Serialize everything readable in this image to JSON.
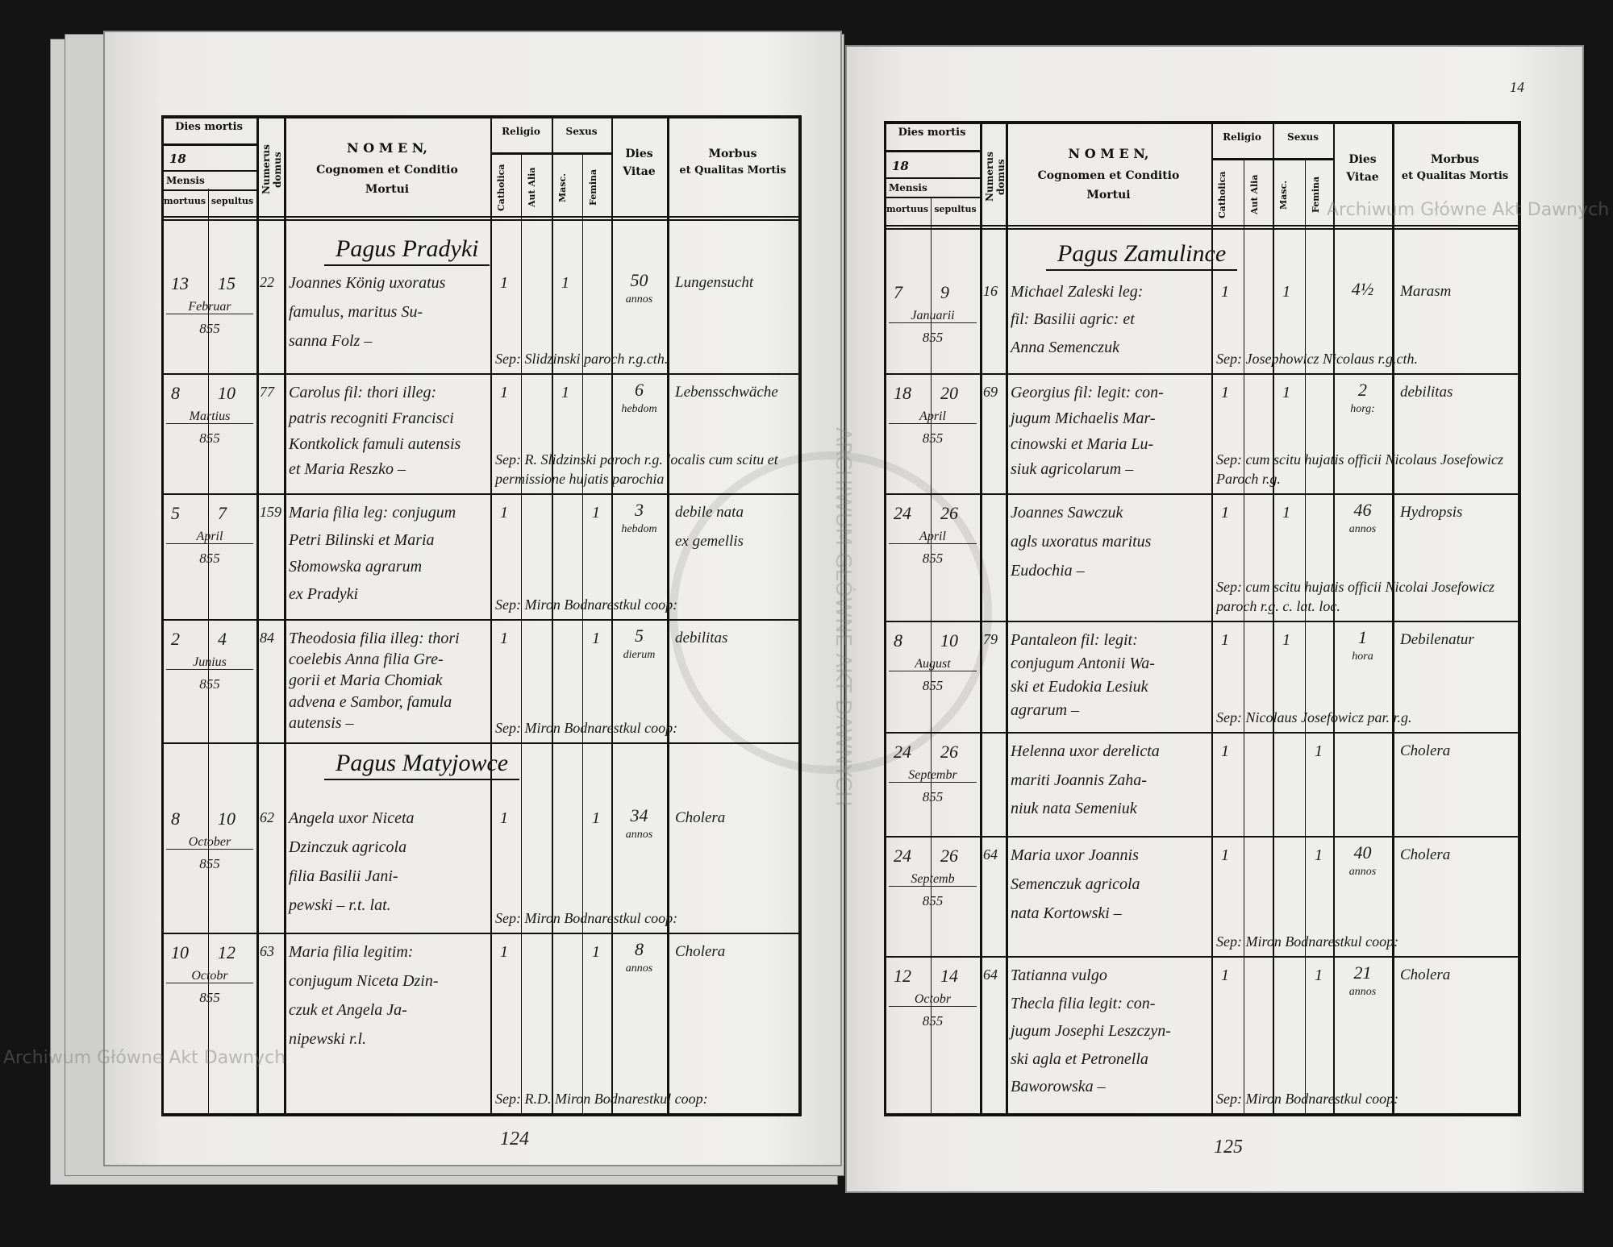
{
  "form_header": {
    "dies_mortis": "Dies mortis",
    "year_prefix": "18",
    "mensis": "Mensis",
    "mortuus": "mortuus",
    "sepultus": "sepultus",
    "numerus_domus": "Numerus domus",
    "nomen": "N O M E N,",
    "nomen_sub1": "Cognomen et Conditio",
    "nomen_sub2": "Mortui",
    "religio": "Religio",
    "catholica": "Catholica",
    "aut_alia": "Aut Alia",
    "sexus": "Sexus",
    "masc": "Masc.",
    "femina": "Femina",
    "dies_vitae_1": "Dies",
    "dies_vitae_2": "Vitae",
    "morbus_1": "Morbus",
    "morbus_2": "et Qualitas Mortis"
  },
  "watermark": "Archiwum Główne Akt Dawnych",
  "seal_text": "ARCHIWUM GŁÓWNE AKT DAWNYCH",
  "left_page": {
    "page_number": "124",
    "headings": [
      "Pagus Pradyki",
      "Pagus Matyjowce"
    ],
    "rows": [
      {
        "mortuus": "13",
        "sepultus": "15",
        "mensis": "Februar",
        "annus": "855",
        "numerus": "22",
        "nomen": [
          "Joannes König uxoratus",
          "famulus, maritus Su-",
          "sanna Folz –"
        ],
        "catholica": "1",
        "aut_alia": "",
        "masc": "1",
        "femina": "",
        "vitae": "50",
        "vitae_unit": "annos",
        "morbus": [
          "Lungensucht"
        ],
        "sepultura": "Sep: Slidzinski paroch r.g.cth."
      },
      {
        "mortuus": "8",
        "sepultus": "10",
        "mensis": "Martius",
        "annus": "855",
        "numerus": "77",
        "nomen": [
          "Carolus fil: thori illeg:",
          "patris recogniti Francisci",
          "Kontkolick famuli autensis",
          "et Maria Reszko –"
        ],
        "catholica": "1",
        "aut_alia": "",
        "masc": "1",
        "femina": "",
        "vitae": "6",
        "vitae_unit": "hebdom",
        "morbus": [
          "Lebensschwäche"
        ],
        "sepultura": "Sep: R. Slidzinski paroch r.g. localis cum scitu et permissione hujatis parochia"
      },
      {
        "mortuus": "5",
        "sepultus": "7",
        "mensis": "April",
        "annus": "855",
        "numerus": "159",
        "nomen": [
          "Maria filia leg: conjugum",
          "Petri Bilinski et Maria",
          "Słomowska agrarum",
          "ex Pradyki"
        ],
        "catholica": "1",
        "aut_alia": "",
        "masc": "",
        "femina": "1",
        "vitae": "3",
        "vitae_unit": "hebdom",
        "morbus": [
          "debile nata",
          "ex gemellis"
        ],
        "sepultura": "Sep: Miron Bodnarestkul coop:"
      },
      {
        "mortuus": "2",
        "sepultus": "4",
        "mensis": "Junius",
        "annus": "855",
        "numerus": "84",
        "nomen": [
          "Theodosia filia illeg: thori",
          "coelebis Anna filia Gre-",
          "gorii et Maria Chomiak",
          "advena e Sambor, famula",
          "autensis –"
        ],
        "catholica": "1",
        "aut_alia": "",
        "masc": "",
        "femina": "1",
        "vitae": "5",
        "vitae_unit": "dierum",
        "morbus": [
          "debilitas"
        ],
        "sepultura": "Sep: Miron Bodnarestkul coop:"
      },
      {
        "mortuus": "8",
        "sepultus": "10",
        "mensis": "October",
        "annus": "855",
        "numerus": "62",
        "nomen": [
          "Angela uxor Niceta",
          "Dzinczuk agricola",
          "filia Basilii Jani-",
          "pewski – r.t. lat."
        ],
        "catholica": "1",
        "aut_alia": "",
        "masc": "",
        "femina": "1",
        "vitae": "34",
        "vitae_unit": "annos",
        "morbus": [
          "Cholera"
        ],
        "sepultura": "Sep: Miron Bodnarestkul coop:"
      },
      {
        "mortuus": "10",
        "sepultus": "12",
        "mensis": "Octobr",
        "annus": "855",
        "numerus": "63",
        "nomen": [
          "Maria filia legitim:",
          "conjugum Niceta Dzin-",
          "czuk et Angela Ja-",
          "nipewski r.l."
        ],
        "catholica": "1",
        "aut_alia": "",
        "masc": "",
        "femina": "1",
        "vitae": "8",
        "vitae_unit": "annos",
        "morbus": [
          "Cholera"
        ],
        "sepultura": "Sep: R.D. Miron Bodnarestkul coop:"
      }
    ]
  },
  "right_page": {
    "page_number": "125",
    "folio": "14",
    "headings": [
      "Pagus Zamulince"
    ],
    "rows": [
      {
        "mortuus": "7",
        "sepultus": "9",
        "mensis": "Januarii",
        "annus": "855",
        "numerus": "16",
        "nomen": [
          "Michael Zaleski leg:",
          "fil: Basilii agric: et",
          "Anna Semenczuk"
        ],
        "catholica": "1",
        "aut_alia": "",
        "masc": "1",
        "femina": "",
        "vitae": "4½",
        "vitae_unit": "",
        "morbus": [
          "Marasm"
        ],
        "sepultura": "Sep: Josephowicz Nicolaus r.g.cth."
      },
      {
        "mortuus": "18",
        "sepultus": "20",
        "mensis": "April",
        "annus": "855",
        "numerus": "69",
        "nomen": [
          "Georgius fil: legit: con-",
          "jugum Michaelis Mar-",
          "cinowski et Maria Lu-",
          "siuk agricolarum –"
        ],
        "catholica": "1",
        "aut_alia": "",
        "masc": "1",
        "femina": "",
        "vitae": "2",
        "vitae_unit": "horg:",
        "morbus": [
          "debilitas"
        ],
        "sepultura": "Sep: cum scitu hujatis officii Nicolaus Josefowicz Paroch r.g."
      },
      {
        "mortuus": "24",
        "sepultus": "26",
        "mensis": "April",
        "annus": "855",
        "numerus": "",
        "nomen": [
          "Joannes Sawczuk",
          "agls uxoratus maritus",
          "Eudochia –"
        ],
        "catholica": "1",
        "aut_alia": "",
        "masc": "1",
        "femina": "",
        "vitae": "46",
        "vitae_unit": "annos",
        "morbus": [
          "Hydropsis"
        ],
        "sepultura": "Sep: cum scitu hujatis officii Nicolai Josefowicz paroch r.g. c. lat. loc."
      },
      {
        "mortuus": "8",
        "sepultus": "10",
        "mensis": "August",
        "annus": "855",
        "numerus": "79",
        "nomen": [
          "Pantaleon fil: legit:",
          "conjugum Antonii Wa-",
          "ski et Eudokia Lesiuk",
          "agrarum –"
        ],
        "catholica": "1",
        "aut_alia": "",
        "masc": "1",
        "femina": "",
        "vitae": "1",
        "vitae_unit": "hora",
        "morbus": [
          "Debilenatur"
        ],
        "sepultura": "Sep: Nicolaus Josefowicz par. r.g."
      },
      {
        "mortuus": "24",
        "sepultus": "26",
        "mensis": "Septembr",
        "annus": "855",
        "numerus": "",
        "nomen": [
          "Helenna uxor derelicta",
          "mariti Joannis Zaha-",
          "niuk nata Semeniuk"
        ],
        "catholica": "1",
        "aut_alia": "",
        "masc": "",
        "femina": "1",
        "vitae": "",
        "vitae_unit": "",
        "morbus": [
          "Cholera"
        ],
        "sepultura": ""
      },
      {
        "mortuus": "24",
        "sepultus": "26",
        "mensis": "Septemb",
        "annus": "855",
        "numerus": "64",
        "nomen": [
          "Maria uxor Joannis",
          "Semenczuk agricola",
          "nata Kortowski –"
        ],
        "catholica": "1",
        "aut_alia": "",
        "masc": "",
        "femina": "1",
        "vitae": "40",
        "vitae_unit": "annos",
        "morbus": [
          "Cholera"
        ],
        "sepultura": "Sep: Miron Bodnarestkul coop:"
      },
      {
        "mortuus": "12",
        "sepultus": "14",
        "mensis": "Octobr",
        "annus": "855",
        "numerus": "64",
        "nomen": [
          "Tatianna vulgo",
          "Thecla filia legit: con-",
          "jugum Josephi Leszczyn-",
          "ski agla et Petronella",
          "Baworowska –"
        ],
        "catholica": "1",
        "aut_alia": "",
        "masc": "",
        "femina": "1",
        "vitae": "21",
        "vitae_unit": "annos",
        "morbus": [
          "Cholera"
        ],
        "sepultura": "Sep: Miron Bodnarestkul coop:"
      }
    ]
  }
}
